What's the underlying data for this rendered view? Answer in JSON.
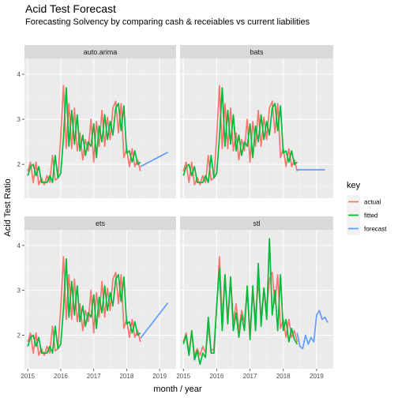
{
  "chart_data": {
    "type": "line",
    "title": "Acid Test Forecast",
    "subtitle": "Forecasting Solvency by comparing cash & receiables vs current liabilities",
    "xlabel": "month / year",
    "ylabel": "Acid Test Ratio",
    "xlim": [
      2014.9,
      2019.5
    ],
    "ylim": [
      1.25,
      4.35
    ],
    "x_ticks": [
      "2015",
      "2016",
      "2017",
      "2018",
      "2019"
    ],
    "y_ticks": [
      "2",
      "3",
      "4"
    ],
    "facet_layout": "2x2",
    "grid": true,
    "legend": {
      "title": "key",
      "position": "right",
      "entries": [
        {
          "label": "actual",
          "color": "#F8766D"
        },
        {
          "label": "fitted",
          "color": "#00BA38"
        },
        {
          "label": "forecast",
          "color": "#619CFF"
        }
      ]
    },
    "actual": {
      "x": [
        2015.0,
        2015.083,
        2015.167,
        2015.25,
        2015.333,
        2015.417,
        2015.5,
        2015.583,
        2015.667,
        2015.75,
        2015.833,
        2015.917,
        2016.0,
        2016.083,
        2016.167,
        2016.25,
        2016.333,
        2016.417,
        2016.5,
        2016.583,
        2016.667,
        2016.75,
        2016.833,
        2016.917,
        2017.0,
        2017.083,
        2017.167,
        2017.25,
        2017.333,
        2017.417,
        2017.5,
        2017.583,
        2017.667,
        2017.75,
        2017.833,
        2017.917,
        2018.0,
        2018.083,
        2018.167,
        2018.25,
        2018.333,
        2018.417
      ],
      "values": [
        1.85,
        2.05,
        1.6,
        2.05,
        1.55,
        1.7,
        1.55,
        1.75,
        1.6,
        2.2,
        1.65,
        1.7,
        2.6,
        3.75,
        2.35,
        3.35,
        2.35,
        3.25,
        2.3,
        2.7,
        2.1,
        2.55,
        2.3,
        3.0,
        2.05,
        2.95,
        2.4,
        3.2,
        2.4,
        3.05,
        2.55,
        3.25,
        3.4,
        2.7,
        3.35,
        2.15,
        2.35,
        1.95,
        2.35,
        1.95,
        2.1,
        1.85
      ]
    },
    "panels": [
      {
        "name": "auto.arima",
        "fitted": [
          1.75,
          1.95,
          2.0,
          1.75,
          1.95,
          1.6,
          1.6,
          1.6,
          1.75,
          1.6,
          2.2,
          1.7,
          1.8,
          2.6,
          3.7,
          2.4,
          3.2,
          2.45,
          3.1,
          2.3,
          2.65,
          2.2,
          2.5,
          2.4,
          2.9,
          2.15,
          2.85,
          2.5,
          3.1,
          2.55,
          2.95,
          2.65,
          3.25,
          3.35,
          2.75,
          3.3,
          2.25,
          2.3,
          2.05,
          2.3,
          2.0,
          2.05
        ],
        "forecast": {
          "x": [
            2018.417,
            2019.25
          ],
          "values": [
            1.95,
            2.27
          ]
        }
      },
      {
        "name": "bats",
        "fitted": [
          1.75,
          1.95,
          2.0,
          1.75,
          1.95,
          1.6,
          1.6,
          1.6,
          1.75,
          1.6,
          2.2,
          1.7,
          1.8,
          2.6,
          3.7,
          2.4,
          3.2,
          2.45,
          3.1,
          2.3,
          2.65,
          2.2,
          2.5,
          2.4,
          2.9,
          2.15,
          2.85,
          2.5,
          3.1,
          2.55,
          2.95,
          2.65,
          3.25,
          3.35,
          2.75,
          3.3,
          2.25,
          2.3,
          2.05,
          2.3,
          2.0,
          2.05
        ],
        "forecast": {
          "x": [
            2018.417,
            2019.25
          ],
          "values": [
            1.88,
            1.88
          ]
        }
      },
      {
        "name": "ets",
        "fitted": [
          1.75,
          1.95,
          2.0,
          1.75,
          1.95,
          1.6,
          1.6,
          1.6,
          1.75,
          1.6,
          2.2,
          1.7,
          1.8,
          2.6,
          3.7,
          2.4,
          3.2,
          2.45,
          3.1,
          2.3,
          2.65,
          2.2,
          2.5,
          2.4,
          2.9,
          2.15,
          2.85,
          2.5,
          3.1,
          2.55,
          2.95,
          2.65,
          3.25,
          3.35,
          2.75,
          3.3,
          2.25,
          2.3,
          2.05,
          2.3,
          2.0,
          2.05
        ],
        "forecast": {
          "x": [
            2018.417,
            2019.25
          ],
          "values": [
            1.93,
            2.72
          ]
        }
      },
      {
        "name": "stl",
        "fitted": [
          1.8,
          2.0,
          1.55,
          2.1,
          1.45,
          1.65,
          1.35,
          1.6,
          1.5,
          2.4,
          1.6,
          1.6,
          2.65,
          3.5,
          2.1,
          3.35,
          2.25,
          3.3,
          2.1,
          2.5,
          1.95,
          2.45,
          2.1,
          3.1,
          1.9,
          3.1,
          2.1,
          3.6,
          2.2,
          3.05,
          2.35,
          4.15,
          2.45,
          3.0,
          2.1,
          3.35,
          2.1,
          2.35,
          1.85,
          2.15,
          1.9,
          1.8
        ],
        "forecast": {
          "x": [
            2018.417,
            2018.5,
            2018.583,
            2018.667,
            2018.75,
            2018.833,
            2018.917,
            2019.0,
            2019.083,
            2019.167,
            2019.25,
            2019.333
          ],
          "values": [
            2.05,
            1.75,
            1.7,
            2.0,
            1.8,
            1.95,
            1.85,
            2.45,
            2.55,
            2.35,
            2.4,
            2.28
          ]
        }
      }
    ]
  }
}
